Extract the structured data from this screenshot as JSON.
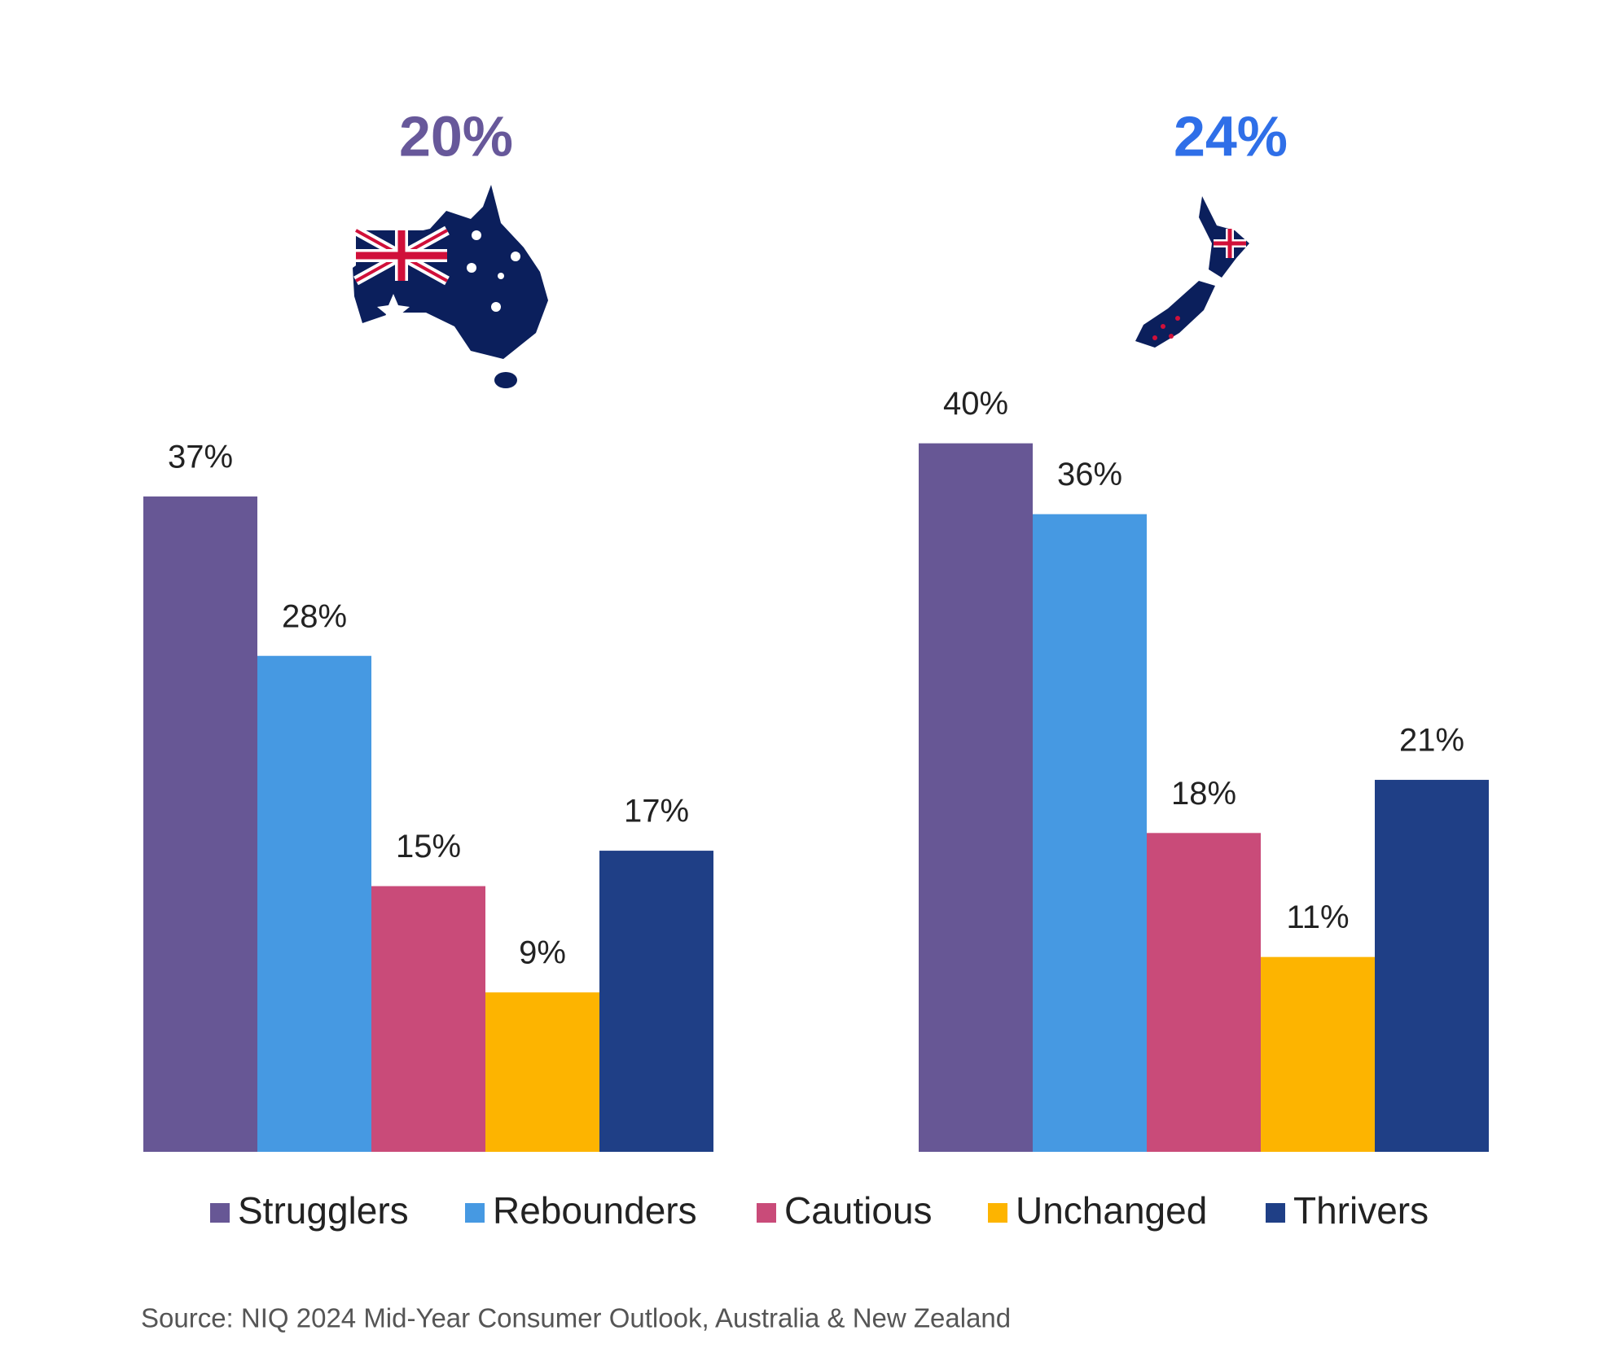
{
  "chart_data": {
    "type": "bar",
    "annotations": [
      {
        "text": "20%",
        "color": "#67589a"
      },
      {
        "text": "24%",
        "color": "#2f6fe8"
      }
    ],
    "categories": [
      null,
      null
    ],
    "series": [
      {
        "name": "Strugglers",
        "color": "#675795",
        "values": [
          37,
          40
        ],
        "value_labels": [
          "37%",
          "40%"
        ]
      },
      {
        "name": "Rebounders",
        "color": "#4699e2",
        "values": [
          28,
          36
        ],
        "value_labels": [
          "28%",
          "36%"
        ]
      },
      {
        "name": "Cautious",
        "color": "#c94b79",
        "values": [
          15,
          18
        ],
        "value_labels": [
          "15%",
          "18%"
        ]
      },
      {
        "name": "Unchanged",
        "color": "#fdb400",
        "values": [
          9,
          11
        ],
        "value_labels": [
          "9%",
          "11%"
        ]
      },
      {
        "name": "Thrivers",
        "color": "#1f3f86",
        "values": [
          17,
          21
        ],
        "value_labels": [
          "17%",
          "21%"
        ]
      }
    ],
    "legend": "bottom",
    "source": "Source: NIQ 2024 Mid-Year Consumer Outlook, Australia & New Zealand"
  }
}
